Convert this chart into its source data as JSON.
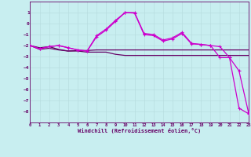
{
  "xlabel": "Windchill (Refroidissement éolien,°C)",
  "xlim": [
    0,
    23
  ],
  "ylim": [
    -9,
    2
  ],
  "xticks": [
    0,
    1,
    2,
    3,
    4,
    5,
    6,
    7,
    8,
    9,
    10,
    11,
    12,
    13,
    14,
    15,
    16,
    17,
    18,
    19,
    20,
    21,
    22,
    23
  ],
  "yticks": [
    1,
    0,
    -1,
    -2,
    -3,
    -4,
    -5,
    -6,
    -7,
    -8
  ],
  "bg_color": "#c8eef0",
  "grid_color": "#b8dde0",
  "line_bright": "#cc00cc",
  "line_dark": "#660066",
  "series1_x": [
    0,
    1,
    2,
    3,
    4,
    5,
    6,
    7,
    8,
    9,
    10,
    11,
    12,
    13,
    14,
    15,
    16,
    17,
    18,
    19,
    20,
    21,
    22,
    23
  ],
  "series1_y": [
    -2.0,
    -2.35,
    -2.25,
    -2.4,
    -2.5,
    -2.45,
    -2.45,
    -2.4,
    -2.4,
    -2.4,
    -2.4,
    -2.4,
    -2.4,
    -2.4,
    -2.4,
    -2.4,
    -2.4,
    -2.4,
    -2.4,
    -2.4,
    -2.4,
    -2.4,
    -2.4,
    -2.4
  ],
  "series2_x": [
    0,
    1,
    2,
    3,
    4,
    5,
    6,
    7,
    8,
    9,
    10,
    11,
    12,
    13,
    14,
    15,
    16,
    17,
    18,
    19,
    20,
    21,
    22,
    23
  ],
  "series2_y": [
    -2.0,
    -2.2,
    -2.1,
    -2.35,
    -2.5,
    -2.5,
    -2.6,
    -2.6,
    -2.6,
    -2.8,
    -2.9,
    -2.9,
    -2.9,
    -2.9,
    -2.9,
    -2.9,
    -2.9,
    -2.9,
    -2.9,
    -2.9,
    -2.9,
    -2.9,
    -2.9,
    -2.9
  ],
  "series3_x": [
    0,
    1,
    2,
    3,
    4,
    5,
    6,
    7,
    8,
    9,
    10,
    11,
    12,
    13,
    14,
    15,
    16,
    17,
    18,
    19,
    20,
    21,
    22,
    23
  ],
  "series3_y": [
    -2.0,
    -2.3,
    -2.1,
    -2.0,
    -2.2,
    -2.4,
    -2.5,
    -1.1,
    -0.5,
    0.3,
    1.0,
    1.0,
    -0.9,
    -1.0,
    -1.5,
    -1.3,
    -0.8,
    -1.8,
    -1.9,
    -2.0,
    -2.1,
    -3.1,
    -7.7,
    -8.2
  ],
  "series4_x": [
    0,
    1,
    2,
    3,
    4,
    5,
    6,
    7,
    8,
    9,
    10,
    11,
    12,
    13,
    14,
    15,
    16,
    17,
    18,
    19,
    20,
    21,
    22,
    23
  ],
  "series4_y": [
    -2.0,
    -2.3,
    -2.1,
    -2.0,
    -2.2,
    -2.4,
    -2.5,
    -1.2,
    -0.6,
    0.2,
    1.0,
    0.95,
    -1.0,
    -1.1,
    -1.6,
    -1.4,
    -0.9,
    -1.85,
    -1.9,
    -2.0,
    -3.1,
    -3.1,
    -4.3,
    -8.1
  ]
}
